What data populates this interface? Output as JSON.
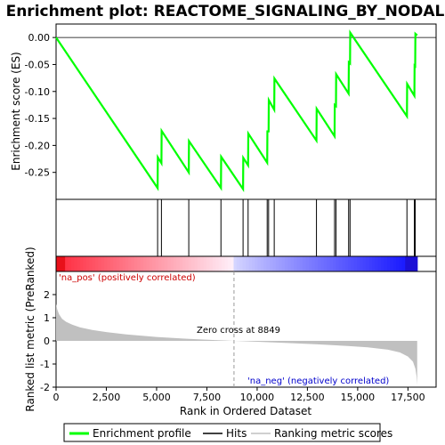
{
  "chart_data": {
    "type": "line",
    "title": "Enrichment plot: REACTOME_SIGNALING_BY_NODAL",
    "es_panel": {
      "ylabel": "Enrichment score (ES)",
      "ylim": [
        -0.3,
        0.025
      ],
      "yticks": [
        0.0,
        -0.05,
        -0.1,
        -0.15,
        -0.2,
        -0.25
      ],
      "ytick_labels": [
        "0.00",
        "-0.05",
        "-0.10",
        "-0.15",
        "-0.20",
        "-0.25"
      ],
      "line_color": "#00ff00",
      "points": [
        [
          0,
          0.0
        ],
        [
          5050,
          -0.279
        ],
        [
          5060,
          -0.222
        ],
        [
          5240,
          -0.233
        ],
        [
          5250,
          -0.173
        ],
        [
          6600,
          -0.25
        ],
        [
          6610,
          -0.192
        ],
        [
          8200,
          -0.279
        ],
        [
          8210,
          -0.221
        ],
        [
          9300,
          -0.281
        ],
        [
          9310,
          -0.223
        ],
        [
          9550,
          -0.237
        ],
        [
          9560,
          -0.178
        ],
        [
          10500,
          -0.232
        ],
        [
          10510,
          -0.174
        ],
        [
          10570,
          -0.174
        ],
        [
          10580,
          -0.116
        ],
        [
          10850,
          -0.134
        ],
        [
          10860,
          -0.076
        ],
        [
          12950,
          -0.191
        ],
        [
          12960,
          -0.132
        ],
        [
          13850,
          -0.183
        ],
        [
          13860,
          -0.125
        ],
        [
          13920,
          -0.127
        ],
        [
          13930,
          -0.068
        ],
        [
          14550,
          -0.104
        ],
        [
          14560,
          -0.046
        ],
        [
          14620,
          -0.048
        ],
        [
          14630,
          0.009
        ],
        [
          17450,
          -0.146
        ],
        [
          17460,
          -0.086
        ],
        [
          17820,
          -0.108
        ],
        [
          17830,
          -0.052
        ],
        [
          17860,
          -0.053
        ],
        [
          17870,
          0.007
        ],
        [
          17960,
          0.004
        ]
      ]
    },
    "hits": [
      5050,
      5240,
      6600,
      8200,
      9300,
      9550,
      10500,
      10570,
      10850,
      12950,
      13850,
      13920,
      14550,
      14620,
      17450,
      17820,
      17860
    ],
    "metric_panel": {
      "ylabel": "Ranked list metric (PreRanked)",
      "ylim": [
        -2.0,
        3.0
      ],
      "yticks": [
        2,
        1,
        0,
        -1,
        -2
      ],
      "ytick_labels": [
        "2",
        "1",
        "0",
        "-1",
        "-2"
      ],
      "fill_color": "#c0c0c0",
      "profile": [
        [
          0,
          1.6
        ],
        [
          60,
          1.35
        ],
        [
          150,
          1.15
        ],
        [
          300,
          0.95
        ],
        [
          500,
          0.82
        ],
        [
          800,
          0.7
        ],
        [
          1200,
          0.58
        ],
        [
          1800,
          0.47
        ],
        [
          2500,
          0.38
        ],
        [
          3500,
          0.28
        ],
        [
          5000,
          0.17
        ],
        [
          6500,
          0.09
        ],
        [
          7800,
          0.04
        ],
        [
          8849,
          0.0
        ],
        [
          10000,
          -0.04
        ],
        [
          11500,
          -0.09
        ],
        [
          13000,
          -0.15
        ],
        [
          14500,
          -0.22
        ],
        [
          15500,
          -0.28
        ],
        [
          16500,
          -0.38
        ],
        [
          17100,
          -0.5
        ],
        [
          17500,
          -0.68
        ],
        [
          17750,
          -0.9
        ],
        [
          17870,
          -1.2
        ],
        [
          17930,
          -1.55
        ],
        [
          17960,
          -1.9
        ]
      ],
      "pos_label": "'na_pos' (positively correlated)",
      "neg_label": "'na_neg' (negatively correlated)",
      "zero_cross_label": "Zero cross at 8849",
      "zero_cross": 8849
    },
    "xlabel": "Rank in Ordered Dataset",
    "xlim": [
      0,
      18900
    ],
    "xticks": [
      0,
      2500,
      5000,
      7500,
      10000,
      12500,
      15000,
      17500
    ],
    "xtick_labels": [
      "0",
      "2,500",
      "5,000",
      "7,500",
      "10,000",
      "12,500",
      "15,000",
      "17,500"
    ],
    "total_genes": 17960,
    "legend": [
      {
        "label": "Enrichment profile",
        "color": "#00ff00"
      },
      {
        "label": "Hits",
        "color": "#000000"
      },
      {
        "label": "Ranking metric scores",
        "color": "#c0c0c0"
      }
    ]
  }
}
